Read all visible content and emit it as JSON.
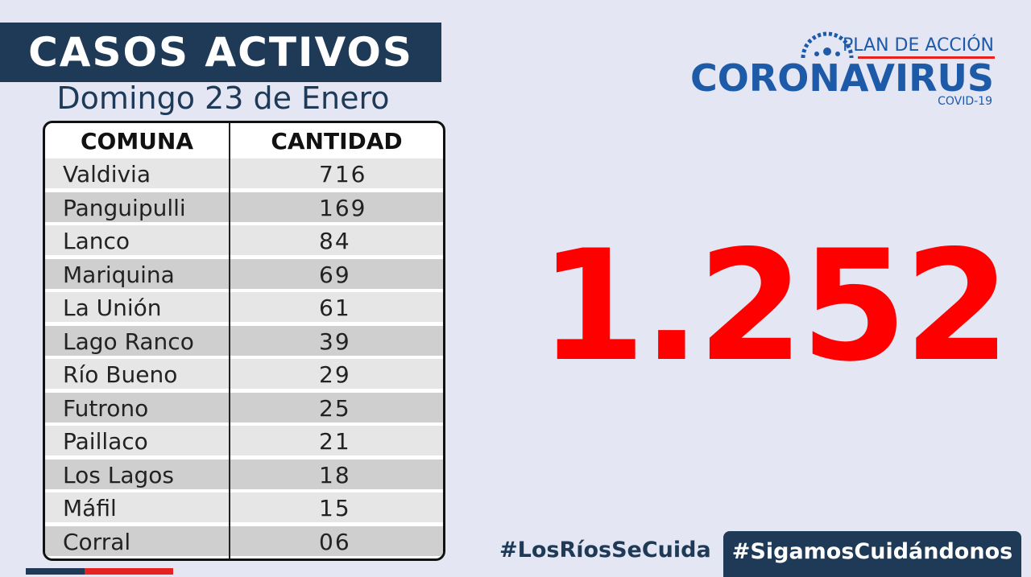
{
  "header": {
    "title": "CASOS ACTIVOS",
    "date": "Domingo 23 de Enero"
  },
  "logo": {
    "line1": "PLAN DE ACCIÓN",
    "line2": "CORONAVIRUS",
    "line3": "COVID-19"
  },
  "table": {
    "columns": [
      "COMUNA",
      "CANTIDAD"
    ],
    "rows": [
      [
        "Valdivia",
        "716"
      ],
      [
        "Panguipulli",
        "169"
      ],
      [
        "Lanco",
        "84"
      ],
      [
        "Mariquina",
        "69"
      ],
      [
        "La Unión",
        "61"
      ],
      [
        "Lago Ranco",
        "39"
      ],
      [
        "Río Bueno",
        "29"
      ],
      [
        "Futrono",
        "25"
      ],
      [
        "Paillaco",
        "21"
      ],
      [
        "Los Lagos",
        "18"
      ],
      [
        "Máfil",
        "15"
      ],
      [
        "Corral",
        "06"
      ]
    ]
  },
  "total": "1.252",
  "footer": {
    "hashtag1": "#LosRíosSeCuida",
    "hashtag2": "#SigamosCuidándonos"
  }
}
